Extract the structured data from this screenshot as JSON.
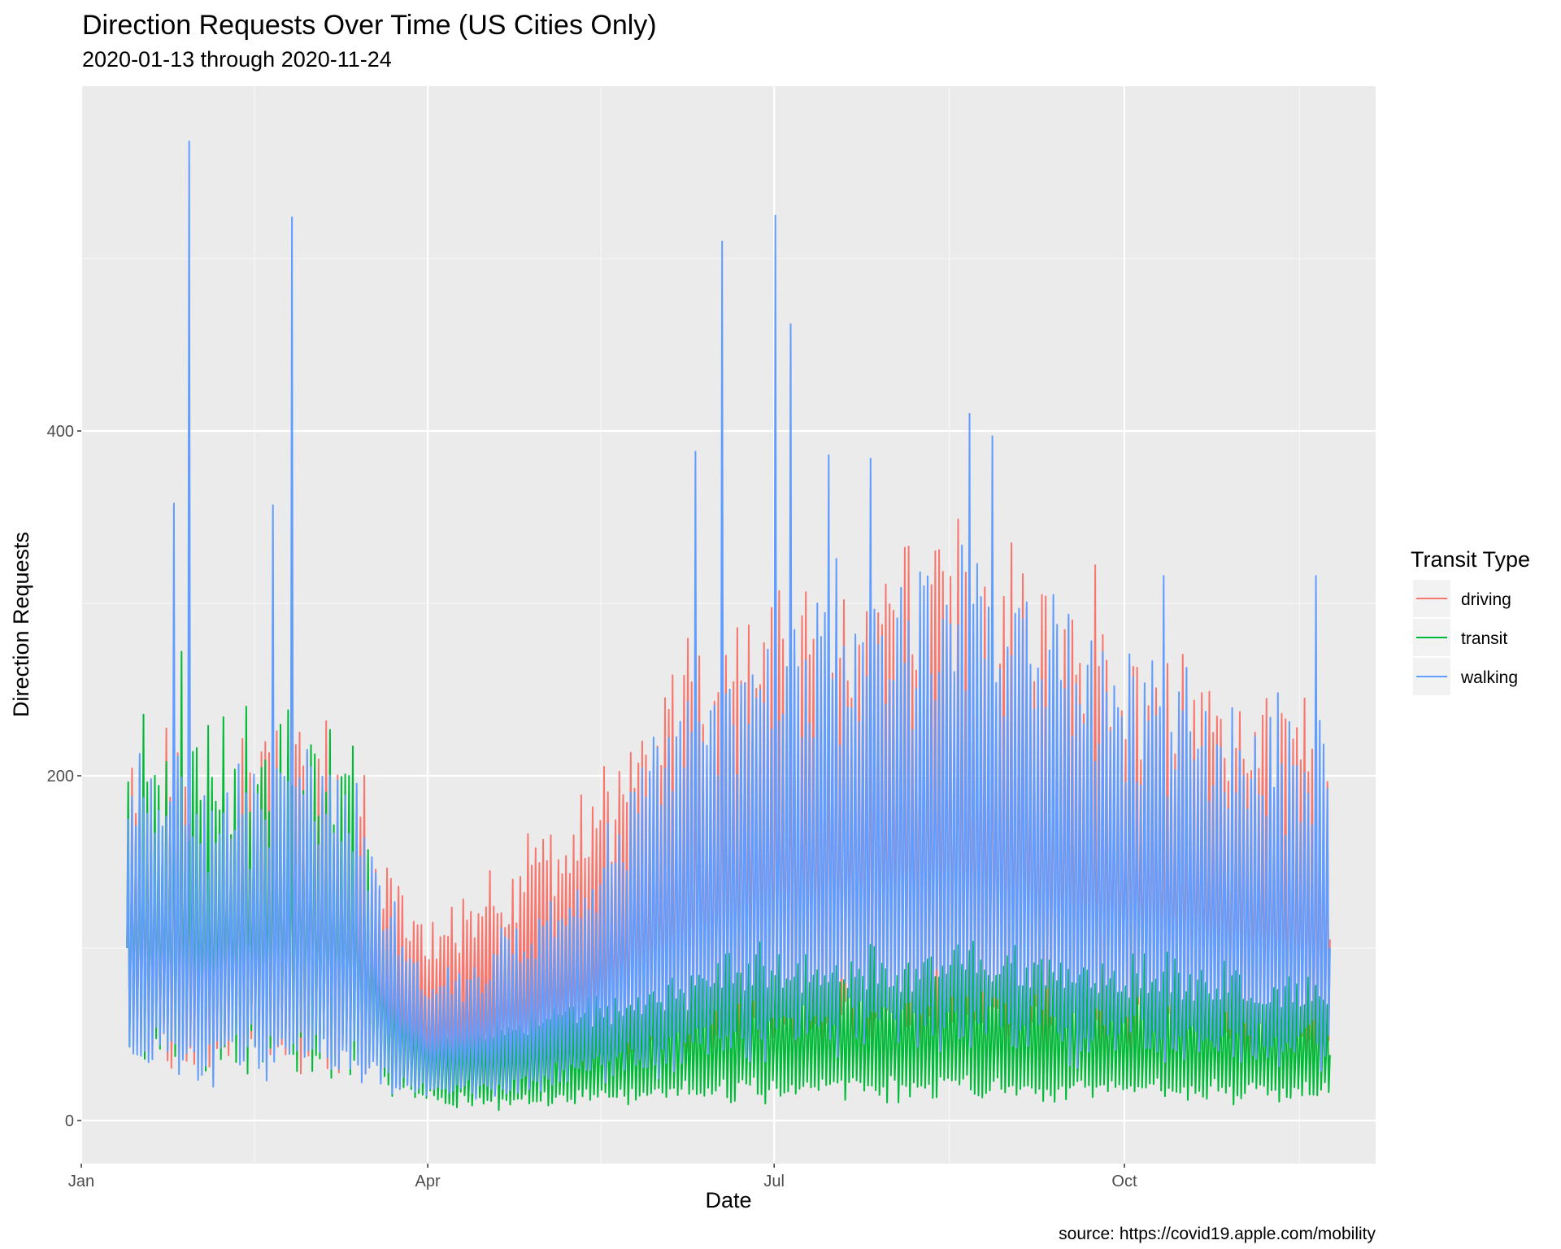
{
  "chart_data": {
    "type": "line",
    "title": "Direction Requests Over Time (US Cities Only)",
    "subtitle": "2020-01-13 through 2020-11-24",
    "xlabel": "Date",
    "ylabel": "Direction Requests",
    "caption": "source: https://covid19.apple.com/mobility",
    "x_range": [
      "2020-01-13",
      "2020-11-24"
    ],
    "xlim": [
      "2020-01-01",
      "2020-12-06"
    ],
    "ylim": [
      -25,
      600
    ],
    "x_ticks": [
      {
        "date": "2020-01-01",
        "label": "Jan"
      },
      {
        "date": "2020-04-01",
        "label": "Apr"
      },
      {
        "date": "2020-07-01",
        "label": "Jul"
      },
      {
        "date": "2020-10-01",
        "label": "Oct"
      }
    ],
    "y_ticks": [
      0,
      200,
      400
    ],
    "grid": true,
    "legend": {
      "title": "Transit Type",
      "position": "right",
      "entries": [
        {
          "name": "driving",
          "color": "#F8766D"
        },
        {
          "name": "transit",
          "color": "#00BA38"
        },
        {
          "name": "walking",
          "color": "#619CFF"
        }
      ]
    },
    "series": [
      {
        "name": "driving",
        "color": "#F8766D",
        "points": [
          [
            "2020-01-13",
            100
          ],
          [
            "2020-02-01",
            95
          ],
          [
            "2020-02-15",
            100
          ],
          [
            "2020-03-01",
            105
          ],
          [
            "2020-03-12",
            100
          ],
          [
            "2020-03-22",
            70
          ],
          [
            "2020-04-01",
            55
          ],
          [
            "2020-04-15",
            65
          ],
          [
            "2020-05-01",
            75
          ],
          [
            "2020-05-15",
            90
          ],
          [
            "2020-06-01",
            115
          ],
          [
            "2020-06-15",
            130
          ],
          [
            "2020-07-01",
            140
          ],
          [
            "2020-07-15",
            145
          ],
          [
            "2020-08-01",
            150
          ],
          [
            "2020-08-15",
            155
          ],
          [
            "2020-09-01",
            150
          ],
          [
            "2020-09-15",
            140
          ],
          [
            "2020-10-01",
            135
          ],
          [
            "2020-10-15",
            130
          ],
          [
            "2020-11-01",
            120
          ],
          [
            "2020-11-24",
            105
          ]
        ],
        "spikes": [
          [
            "2020-02-01",
            145
          ],
          [
            "2020-08-05",
            333
          ],
          [
            "2020-08-28",
            240
          ],
          [
            "2020-09-27",
            228
          ],
          [
            "2020-10-12",
            265
          ],
          [
            "2020-10-24",
            225
          ]
        ]
      },
      {
        "name": "transit",
        "color": "#00BA38",
        "points": [
          [
            "2020-01-13",
            100
          ],
          [
            "2020-02-01",
            105
          ],
          [
            "2020-02-15",
            110
          ],
          [
            "2020-03-01",
            105
          ],
          [
            "2020-03-12",
            95
          ],
          [
            "2020-03-22",
            50
          ],
          [
            "2020-04-01",
            30
          ],
          [
            "2020-04-15",
            28
          ],
          [
            "2020-05-01",
            30
          ],
          [
            "2020-05-15",
            33
          ],
          [
            "2020-06-01",
            38
          ],
          [
            "2020-06-15",
            42
          ],
          [
            "2020-07-01",
            45
          ],
          [
            "2020-07-15",
            45
          ],
          [
            "2020-08-01",
            45
          ],
          [
            "2020-08-15",
            48
          ],
          [
            "2020-09-01",
            45
          ],
          [
            "2020-09-15",
            45
          ],
          [
            "2020-10-01",
            43
          ],
          [
            "2020-10-15",
            42
          ],
          [
            "2020-11-01",
            40
          ],
          [
            "2020-11-24",
            38
          ]
        ],
        "spikes": [
          [
            "2020-01-27",
            272
          ],
          [
            "2020-02-03",
            229
          ],
          [
            "2020-02-07",
            234
          ],
          [
            "2020-02-24",
            238
          ],
          [
            "2020-03-11",
            200
          ]
        ]
      },
      {
        "name": "walking",
        "color": "#619CFF",
        "points": [
          [
            "2020-01-13",
            100
          ],
          [
            "2020-02-01",
            90
          ],
          [
            "2020-02-15",
            95
          ],
          [
            "2020-03-01",
            100
          ],
          [
            "2020-03-12",
            95
          ],
          [
            "2020-03-22",
            60
          ],
          [
            "2020-04-01",
            40
          ],
          [
            "2020-04-15",
            45
          ],
          [
            "2020-05-01",
            55
          ],
          [
            "2020-05-15",
            70
          ],
          [
            "2020-06-01",
            105
          ],
          [
            "2020-06-15",
            120
          ],
          [
            "2020-07-01",
            135
          ],
          [
            "2020-07-15",
            140
          ],
          [
            "2020-08-01",
            145
          ],
          [
            "2020-08-15",
            150
          ],
          [
            "2020-09-01",
            140
          ],
          [
            "2020-09-15",
            130
          ],
          [
            "2020-10-01",
            125
          ],
          [
            "2020-10-15",
            120
          ],
          [
            "2020-11-01",
            110
          ],
          [
            "2020-11-24",
            100
          ]
        ],
        "spikes": [
          [
            "2020-01-29",
            568
          ],
          [
            "2020-02-25",
            524
          ],
          [
            "2020-06-17",
            510
          ],
          [
            "2020-07-01",
            525
          ],
          [
            "2020-07-05",
            462
          ],
          [
            "2020-08-21",
            410
          ],
          [
            "2020-01-25",
            358
          ],
          [
            "2020-02-20",
            357
          ],
          [
            "2020-06-10",
            388
          ],
          [
            "2020-07-15",
            386
          ],
          [
            "2020-07-26",
            384
          ],
          [
            "2020-08-27",
            397
          ],
          [
            "2020-09-12",
            305
          ],
          [
            "2020-10-11",
            316
          ],
          [
            "2020-11-20",
            316
          ]
        ]
      }
    ]
  }
}
